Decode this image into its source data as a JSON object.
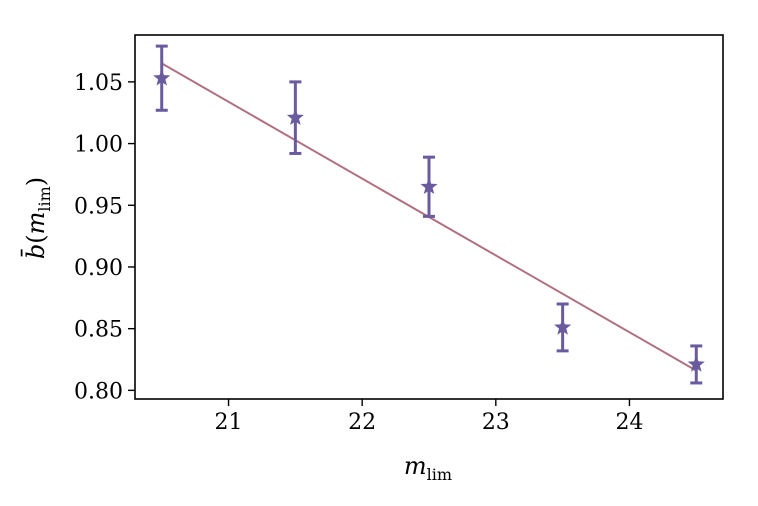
{
  "chart_data": {
    "type": "scatter",
    "xlabel": "m_lim",
    "ylabel": "b̄(m_lim)",
    "xlim": [
      20.3,
      24.7
    ],
    "ylim": [
      0.793,
      1.088
    ],
    "xticks": [
      21,
      22,
      23,
      24
    ],
    "yticks": [
      0.8,
      0.85,
      0.9,
      0.95,
      1.0,
      1.05
    ],
    "xtick_labels": [
      "21",
      "22",
      "23",
      "24"
    ],
    "ytick_labels": [
      "0.80",
      "0.85",
      "0.90",
      "0.95",
      "1.00",
      "1.05"
    ],
    "grid": false,
    "series": [
      {
        "type": "errorbar",
        "marker": "star",
        "color": "#6a5a9e",
        "x": [
          20.5,
          21.5,
          22.5,
          23.5,
          24.5
        ],
        "y": [
          1.053,
          1.021,
          0.965,
          0.851,
          0.821
        ],
        "yerr": [
          0.026,
          0.029,
          0.024,
          0.019,
          0.015
        ]
      },
      {
        "type": "line",
        "color": "#b07080",
        "x": [
          20.5,
          24.5
        ],
        "y": [
          1.065,
          0.816
        ]
      }
    ]
  },
  "axes": {
    "xlabel_main": "m",
    "xlabel_sub": "lim",
    "ylabel_main": "b̄",
    "ylabel_paren_open": "(",
    "ylabel_m": "m",
    "ylabel_sub": "lim",
    "ylabel_paren_close": ")"
  }
}
